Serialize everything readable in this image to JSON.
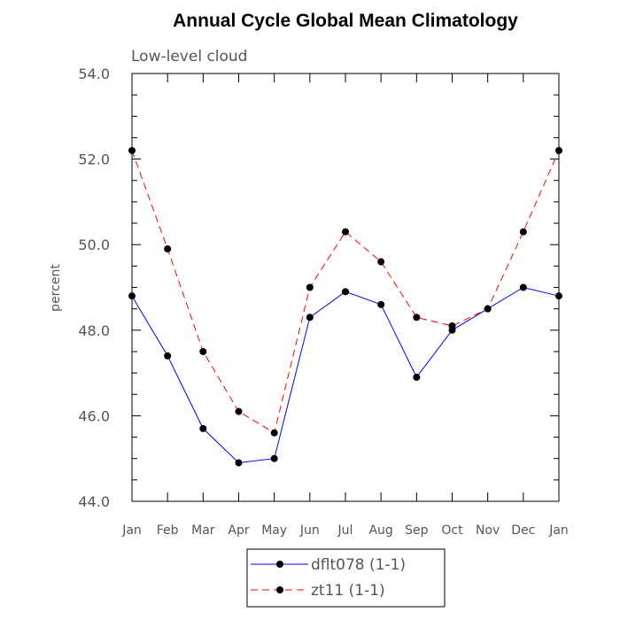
{
  "chart_data": {
    "type": "line",
    "title": "Annual Cycle Global Mean Climatology",
    "subtitle": "Low-level cloud",
    "xlabel": "",
    "ylabel": "percent",
    "ylim": [
      44.0,
      54.0
    ],
    "yticks": [
      "44.0",
      "46.0",
      "48.0",
      "50.0",
      "52.0",
      "54.0"
    ],
    "ytick_values": [
      44,
      46,
      48,
      50,
      52,
      54
    ],
    "categories": [
      "Jan",
      "Feb",
      "Mar",
      "Apr",
      "May",
      "Jun",
      "Jul",
      "Aug",
      "Sep",
      "Oct",
      "Nov",
      "Dec",
      "Jan"
    ],
    "series": [
      {
        "name": "dflt078 (1-1)",
        "color": "#0000ff",
        "dash": "solid",
        "values": [
          48.8,
          47.4,
          45.7,
          44.9,
          45.0,
          48.3,
          48.9,
          48.6,
          46.9,
          48.0,
          48.5,
          49.0,
          48.8
        ]
      },
      {
        "name": "zt11 (1-1)",
        "color": "#ff0000",
        "dash": "dashed",
        "values": [
          52.2,
          49.9,
          47.5,
          46.1,
          45.6,
          49.0,
          50.3,
          49.6,
          48.3,
          48.1,
          48.5,
          50.3,
          52.2
        ]
      }
    ],
    "grid": false,
    "legend_position": "bottom-center"
  }
}
